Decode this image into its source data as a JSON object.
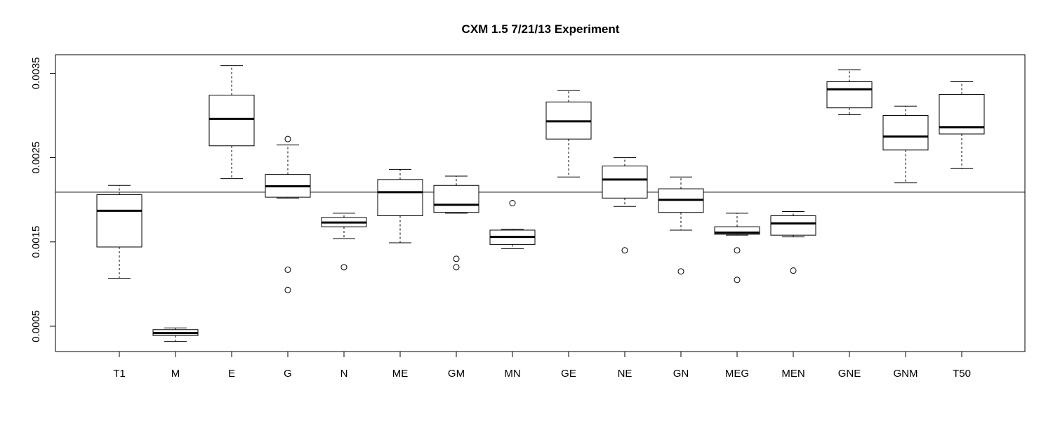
{
  "chart_data": {
    "type": "boxplot",
    "title": "CXM 1.5 7/21/13 Experiment",
    "xlabel": "",
    "ylabel": "",
    "ylim": [
      0.0002,
      0.00372
    ],
    "yticks": [
      0.0005,
      0.0015,
      0.0025,
      0.0035
    ],
    "ytick_labels": [
      "0.0005",
      "0.0015",
      "0.0025",
      "0.0035"
    ],
    "reference_line": 0.00209,
    "categories": [
      "T1",
      "M",
      "E",
      "G",
      "N",
      "ME",
      "GM",
      "MN",
      "GE",
      "NE",
      "GN",
      "MEG",
      "MEN",
      "GNE",
      "GNM",
      "T50"
    ],
    "boxes": [
      {
        "label": "T1",
        "whisker_low": 0.00107,
        "q1": 0.00144,
        "median": 0.00187,
        "q3": 0.00206,
        "whisker_high": 0.00217,
        "outliers": []
      },
      {
        "label": "M",
        "whisker_low": 0.00032,
        "q1": 0.00039,
        "median": 0.00042,
        "q3": 0.00046,
        "whisker_high": 0.00048,
        "outliers": []
      },
      {
        "label": "E",
        "whisker_low": 0.00225,
        "q1": 0.00264,
        "median": 0.00296,
        "q3": 0.00324,
        "whisker_high": 0.00359,
        "outliers": []
      },
      {
        "label": "G",
        "whisker_low": 0.00202,
        "q1": 0.00203,
        "median": 0.00216,
        "q3": 0.0023,
        "whisker_high": 0.00265,
        "outliers": [
          0.00272,
          0.00117,
          0.00093
        ]
      },
      {
        "label": "N",
        "whisker_low": 0.00154,
        "q1": 0.00168,
        "median": 0.00173,
        "q3": 0.00179,
        "whisker_high": 0.00184,
        "outliers": [
          0.0012
        ]
      },
      {
        "label": "ME",
        "whisker_low": 0.00149,
        "q1": 0.00181,
        "median": 0.00209,
        "q3": 0.00224,
        "whisker_high": 0.00236,
        "outliers": []
      },
      {
        "label": "GM",
        "whisker_low": 0.00184,
        "q1": 0.00185,
        "median": 0.00194,
        "q3": 0.00217,
        "whisker_high": 0.00228,
        "outliers": [
          0.0013,
          0.0012
        ]
      },
      {
        "label": "MN",
        "whisker_low": 0.00142,
        "q1": 0.00147,
        "median": 0.00156,
        "q3": 0.00164,
        "whisker_high": 0.00165,
        "outliers": [
          0.00196
        ]
      },
      {
        "label": "GE",
        "whisker_low": 0.00227,
        "q1": 0.00272,
        "median": 0.00293,
        "q3": 0.00316,
        "whisker_high": 0.0033,
        "outliers": []
      },
      {
        "label": "NE",
        "whisker_low": 0.00192,
        "q1": 0.00202,
        "median": 0.00224,
        "q3": 0.0024,
        "whisker_high": 0.0025,
        "outliers": [
          0.0014
        ]
      },
      {
        "label": "GN",
        "whisker_low": 0.00164,
        "q1": 0.00185,
        "median": 0.002,
        "q3": 0.00213,
        "whisker_high": 0.00227,
        "outliers": [
          0.00115
        ]
      },
      {
        "label": "MEG",
        "whisker_low": 0.00158,
        "q1": 0.00159,
        "median": 0.00161,
        "q3": 0.00168,
        "whisker_high": 0.00184,
        "outliers": [
          0.0014,
          0.00105
        ]
      },
      {
        "label": "MEN",
        "whisker_low": 0.00156,
        "q1": 0.00158,
        "median": 0.00172,
        "q3": 0.00181,
        "whisker_high": 0.00186,
        "outliers": [
          0.00116
        ]
      },
      {
        "label": "GNE",
        "whisker_low": 0.00301,
        "q1": 0.00309,
        "median": 0.00331,
        "q3": 0.0034,
        "whisker_high": 0.00354,
        "outliers": []
      },
      {
        "label": "GNM",
        "whisker_low": 0.0022,
        "q1": 0.00259,
        "median": 0.00275,
        "q3": 0.003,
        "whisker_high": 0.00311,
        "outliers": []
      },
      {
        "label": "T50",
        "whisker_low": 0.00237,
        "q1": 0.00278,
        "median": 0.00286,
        "q3": 0.00325,
        "whisker_high": 0.0034,
        "outliers": []
      }
    ],
    "grid": false,
    "legend": "none"
  }
}
